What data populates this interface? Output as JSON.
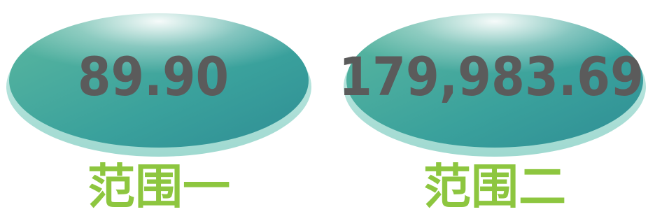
{
  "items": [
    {
      "value": "89.90",
      "label": "范围一"
    },
    {
      "value": "179,983.69",
      "label": "范围二"
    }
  ]
}
